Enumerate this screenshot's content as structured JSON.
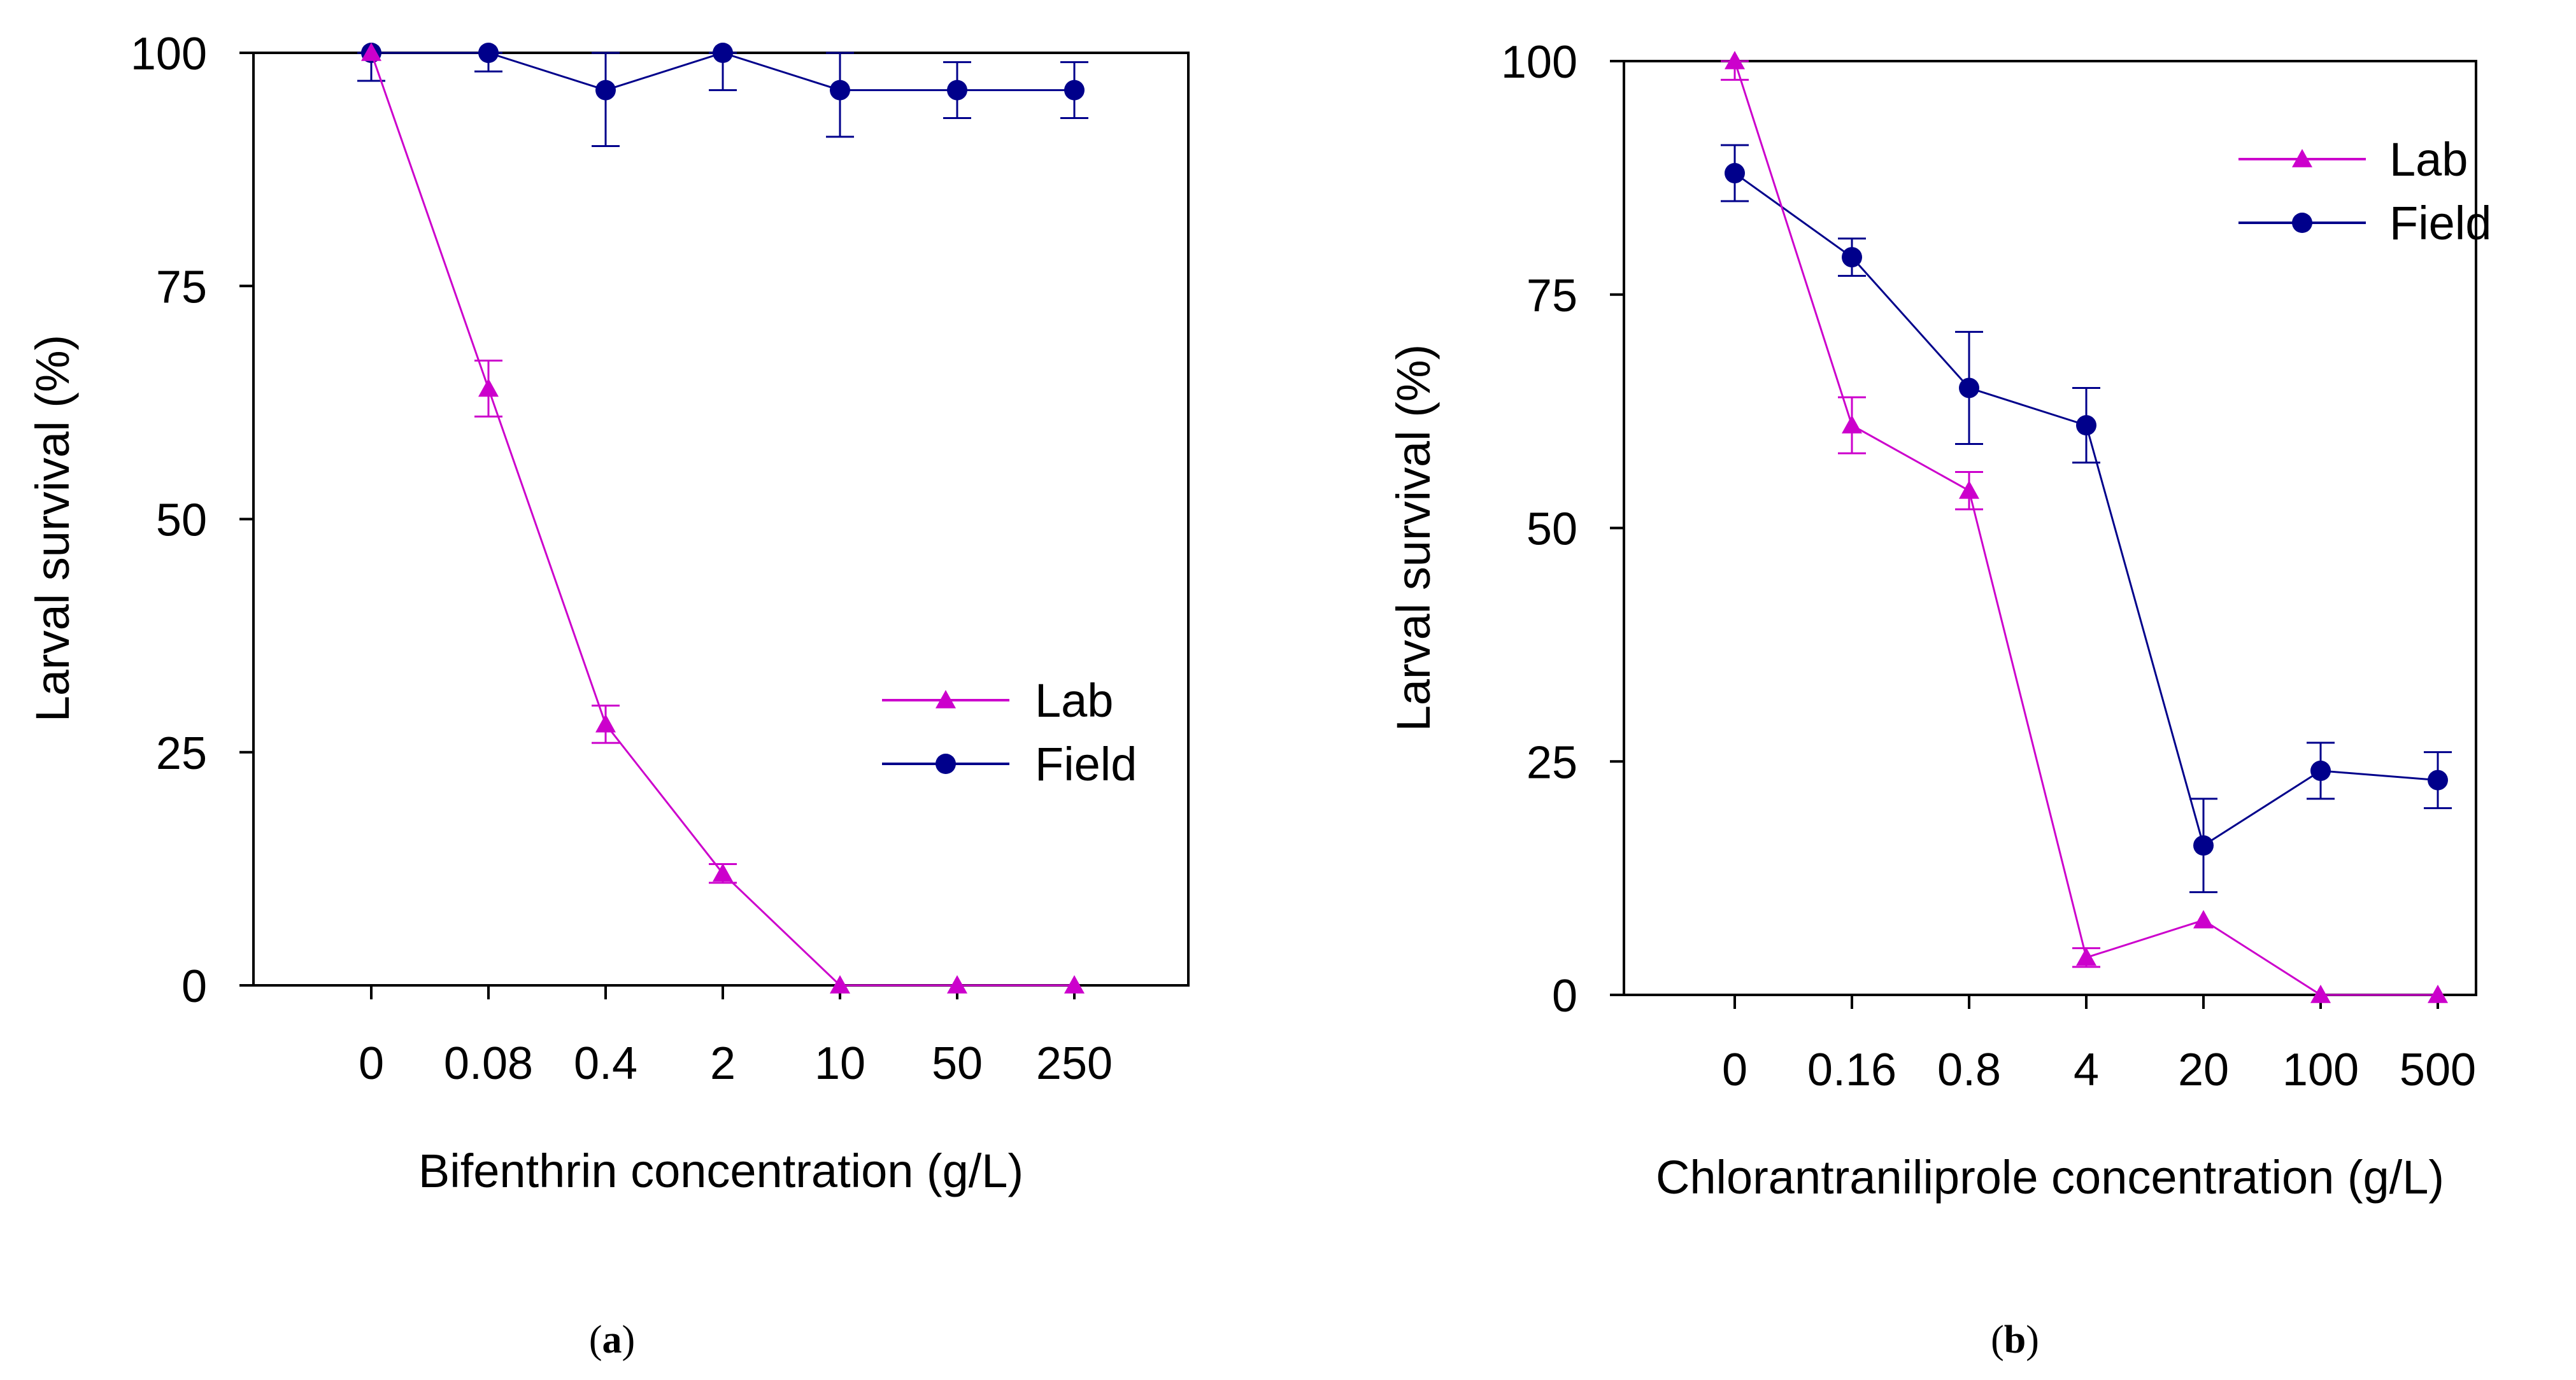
{
  "figure": {
    "colors": {
      "lab": "#cc00cc",
      "field": "#00008b",
      "axis": "#000000"
    },
    "panels": [
      {
        "panel_label": "(a)",
        "panel_letter": "a"
      },
      {
        "panel_label": "(b)",
        "panel_letter": "b"
      }
    ]
  },
  "chart_data": [
    {
      "type": "line",
      "title": "",
      "xlabel": "Bifenthrin concentration (g/L)",
      "ylabel": "Larval survival (%)",
      "ylim": [
        0,
        100
      ],
      "yticks": [
        "0",
        "25",
        "50",
        "75",
        "100"
      ],
      "categories": [
        "0",
        "0.08",
        "0.4",
        "2",
        "10",
        "50",
        "250"
      ],
      "legend_position": "center-right",
      "series": [
        {
          "name": "Lab",
          "marker": "triangle",
          "values": [
            100,
            64,
            28,
            12,
            0,
            0,
            0
          ],
          "errors": [
            0,
            3,
            2,
            1,
            0,
            0,
            0
          ]
        },
        {
          "name": "Field",
          "marker": "circle",
          "values": [
            100,
            100,
            96,
            100,
            96,
            96,
            96
          ],
          "errors": [
            3,
            2,
            6,
            4,
            5,
            3,
            3
          ]
        }
      ]
    },
    {
      "type": "line",
      "title": "",
      "xlabel": "Chlorantraniliprole concentration (g/L)",
      "ylabel": "Larval survival (%)",
      "ylim": [
        0,
        100
      ],
      "yticks": [
        "0",
        "25",
        "50",
        "75",
        "100"
      ],
      "categories": [
        "0",
        "0.16",
        "0.8",
        "4",
        "20",
        "100",
        "500"
      ],
      "legend_position": "top-right",
      "series": [
        {
          "name": "Lab",
          "marker": "triangle",
          "values": [
            100,
            61,
            54,
            4,
            8,
            0,
            0
          ],
          "errors": [
            2,
            3,
            2,
            1,
            0,
            0,
            0
          ]
        },
        {
          "name": "Field",
          "marker": "circle",
          "values": [
            88,
            79,
            65,
            61,
            16,
            24,
            23
          ],
          "errors": [
            3,
            2,
            6,
            4,
            5,
            3,
            3
          ]
        }
      ]
    }
  ]
}
